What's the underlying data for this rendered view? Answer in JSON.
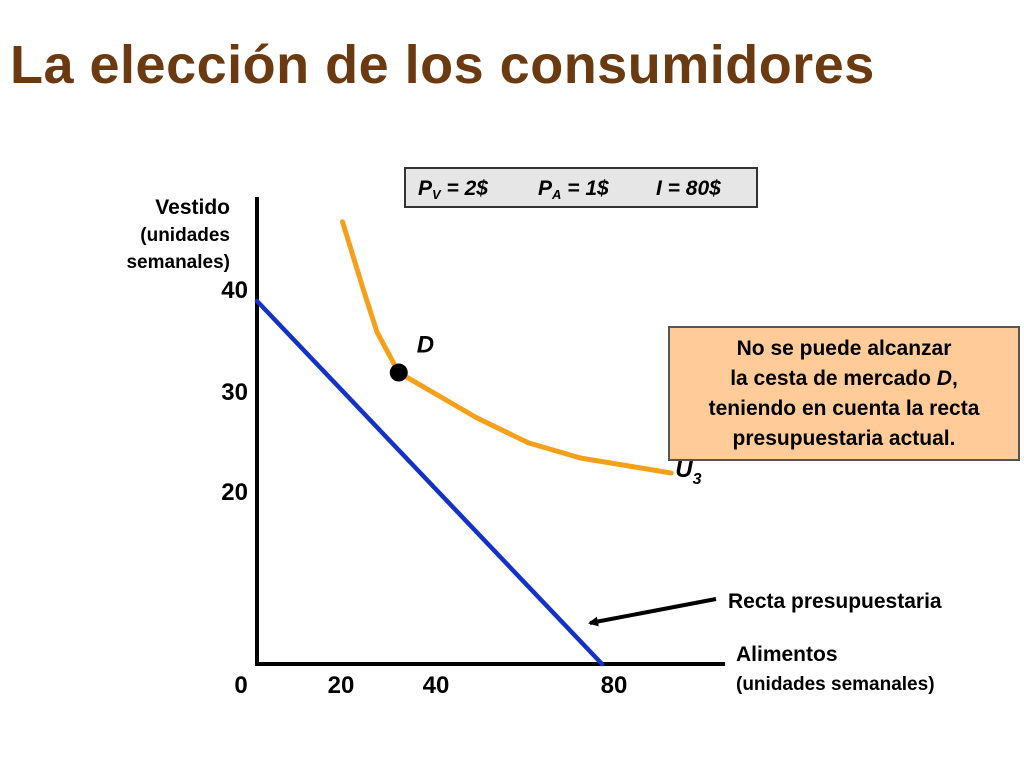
{
  "slide": {
    "title": "La elección de los consumidores"
  },
  "prices": {
    "pv_symbol": "P",
    "pv_sub": "V",
    "pv_value": " = 2$",
    "pa_symbol": "P",
    "pa_sub": "A",
    "pa_value": " = 1$",
    "income": "I = 80$"
  },
  "note": {
    "lines": [
      "No se puede alcanzar",
      "la cesta de mercado D,",
      "teniendo en cuenta la recta",
      "presupuestaria actual."
    ]
  },
  "chart_data": {
    "type": "line",
    "xlabel_line1": "Alimentos",
    "xlabel_line2": "(unidades semanales)",
    "ylabel_line1": "Vestido",
    "ylabel_line2": "(unidades",
    "ylabel_line3": "semanales)",
    "x_ticks": [
      "0",
      "20",
      "40",
      "80"
    ],
    "y_ticks": [
      "20",
      "30",
      "40"
    ],
    "series": [
      {
        "label": "Recta presupuestaria",
        "color": "#1432c8",
        "points": [
          [
            0,
            40
          ],
          [
            80,
            0
          ]
        ]
      },
      {
        "label": "U",
        "label_sub": "3",
        "color": "#f5a01a",
        "points": [
          [
            17,
            44
          ],
          [
            22,
            37
          ],
          [
            25,
            33
          ],
          [
            30,
            29
          ],
          [
            38,
            27
          ],
          [
            48,
            24.5
          ],
          [
            60,
            22
          ],
          [
            72,
            20.5
          ],
          [
            86,
            19.5
          ],
          [
            93,
            19
          ]
        ]
      }
    ],
    "market_basket": {
      "label": "D",
      "x": 30,
      "y": 29
    },
    "ylim": [
      0,
      47
    ],
    "xlim": [
      0,
      100
    ],
    "color_marker": "#000000"
  }
}
